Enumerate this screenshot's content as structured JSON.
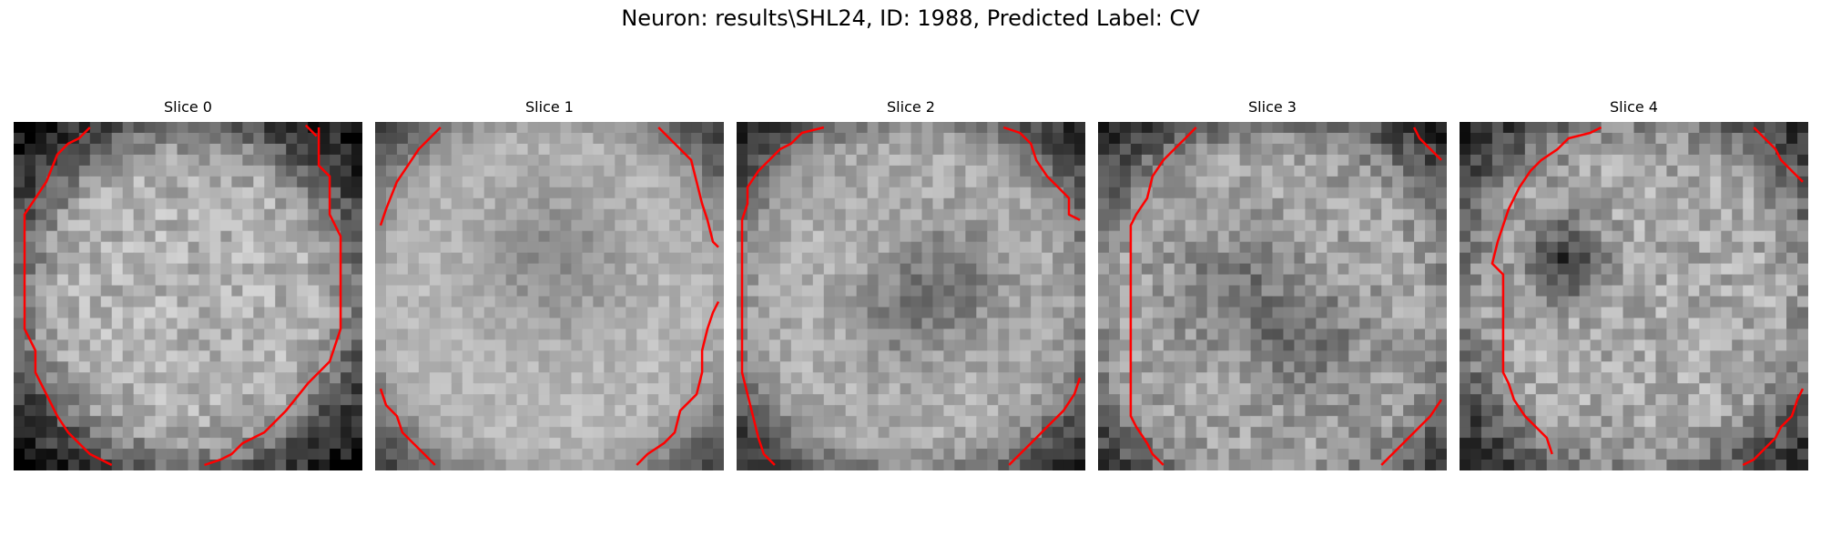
{
  "figure": {
    "title": "Neuron: results\\SHL24, ID: 1988, Predicted Label: CV"
  },
  "slices": [
    {
      "title": "Slice 0"
    },
    {
      "title": "Slice 1"
    },
    {
      "title": "Slice 2"
    },
    {
      "title": "Slice 3"
    },
    {
      "title": "Slice 4"
    }
  ],
  "colors": {
    "contour": "#ff0000",
    "background": "#ffffff"
  }
}
